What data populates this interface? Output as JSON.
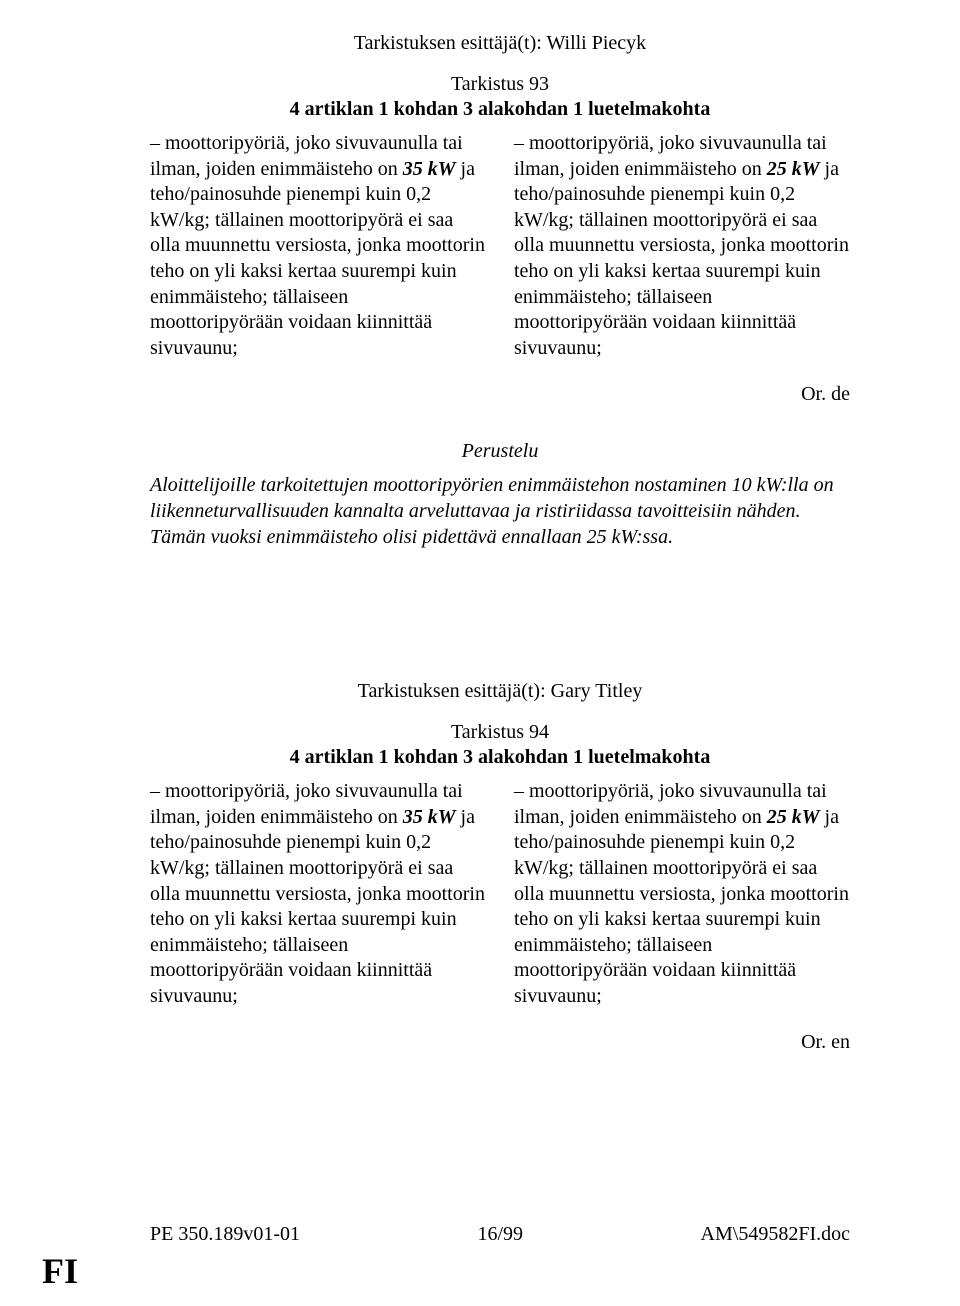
{
  "amend1": {
    "author_line": "Tarkistuksen esittäjä(t): Willi Piecyk",
    "tarkistus": "Tarkistus 93",
    "article": "4 artiklan 1 kohdan 3 alakohdan 1 luetelmakohta",
    "left": {
      "pre": "– moottoripyöriä, joko sivuvaunulla tai ilman, joiden enimmäisteho on ",
      "bold": "35 kW",
      "post": " ja teho/painosuhde pienempi kuin 0,2 kW/kg; tällainen moottoripyörä ei saa olla muunnettu versiosta, jonka moottorin teho on yli kaksi kertaa suurempi kuin enimmäisteho; tällaiseen moottoripyörään voidaan kiinnittää sivuvaunu;"
    },
    "right": {
      "pre": "– moottoripyöriä, joko sivuvaunulla tai ilman, joiden enimmäisteho on ",
      "bold": "25 kW",
      "post": " ja teho/painosuhde pienempi kuin 0,2 kW/kg; tällainen moottoripyörä ei saa olla muunnettu versiosta, jonka moottorin teho on yli kaksi kertaa suurempi kuin enimmäisteho; tällaiseen moottoripyörään voidaan kiinnittää sivuvaunu;"
    },
    "or": "Or. de",
    "perustelu_heading": "Perustelu",
    "perustelu_body": "Aloittelijoille tarkoitettujen moottoripyörien enimmäistehon nostaminen 10 kW:lla on liikenneturvallisuuden kannalta arveluttavaa ja ristiriidassa tavoitteisiin nähden. Tämän vuoksi enimmäisteho olisi pidettävä ennallaan 25 kW:ssa."
  },
  "amend2": {
    "author_line": "Tarkistuksen esittäjä(t): Gary Titley",
    "tarkistus": "Tarkistus 94",
    "article": "4 artiklan 1 kohdan 3 alakohdan 1 luetelmakohta",
    "left": {
      "pre": "– moottoripyöriä, joko sivuvaunulla tai ilman, joiden enimmäisteho on ",
      "bold": "35 kW",
      "post": " ja teho/painosuhde pienempi kuin 0,2 kW/kg; tällainen moottoripyörä ei saa olla muunnettu versiosta, jonka moottorin teho on yli kaksi kertaa suurempi kuin enimmäisteho; tällaiseen moottoripyörään voidaan kiinnittää sivuvaunu;"
    },
    "right": {
      "pre": "– moottoripyöriä, joko sivuvaunulla tai ilman, joiden enimmäisteho on ",
      "bold": "25 kW",
      "post": " ja teho/painosuhde pienempi kuin 0,2 kW/kg; tällainen moottoripyörä ei saa olla muunnettu versiosta, jonka moottorin teho on yli kaksi kertaa suurempi kuin enimmäisteho; tällaiseen moottoripyörään voidaan kiinnittää sivuvaunu;"
    },
    "or": "Or. en"
  },
  "footer": {
    "left": "PE 350.189v01-01",
    "center": "16/99",
    "right": "AM\\549582FI.doc"
  },
  "lang_mark": "FI"
}
